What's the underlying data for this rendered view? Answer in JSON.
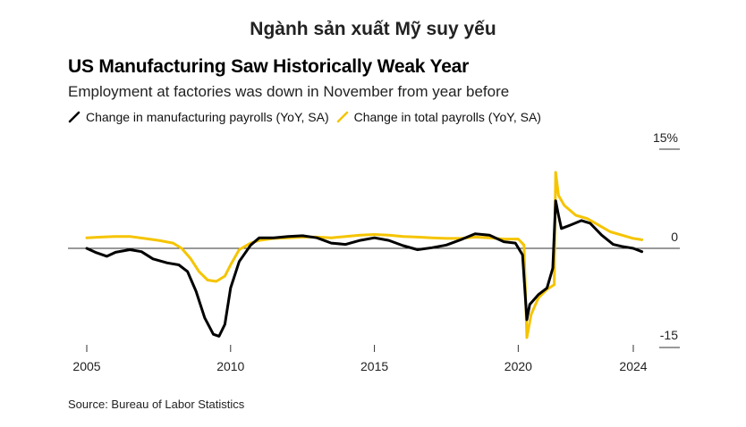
{
  "page": {
    "heading": "Ngành sản xuất Mỹ suy yếu"
  },
  "colors": {
    "manufacturing": "#000000",
    "total": "#f5c400",
    "zero_line": "#333333",
    "axis_text": "#222222"
  },
  "chart_data": {
    "type": "line",
    "title": "US Manufacturing Saw Historically Weak Year",
    "subtitle": "Employment at factories was down in November from year before",
    "source": "Source: Bureau of Labor Statistics",
    "xlim": [
      2005,
      2024
    ],
    "ylim": [
      -15,
      15
    ],
    "x_ticks": [
      2005,
      2010,
      2015,
      2020,
      2024
    ],
    "x_tick_labels": [
      "2005",
      "2010",
      "2015",
      "2020",
      "2024"
    ],
    "y_ticks": [
      15,
      0,
      -15
    ],
    "y_tick_labels": [
      "15%",
      "0",
      "-15"
    ],
    "legend_position": "top",
    "series": [
      {
        "name": "Change in manufacturing payrolls (YoY, SA)",
        "color": "#000000",
        "points": [
          [
            2005.0,
            0.0
          ],
          [
            2005.3,
            -0.6
          ],
          [
            2005.7,
            -1.2
          ],
          [
            2006.0,
            -0.6
          ],
          [
            2006.5,
            -0.2
          ],
          [
            2006.9,
            -0.5
          ],
          [
            2007.3,
            -1.6
          ],
          [
            2007.8,
            -2.2
          ],
          [
            2008.2,
            -2.5
          ],
          [
            2008.5,
            -3.5
          ],
          [
            2008.8,
            -6.5
          ],
          [
            2009.1,
            -10.5
          ],
          [
            2009.4,
            -13.0
          ],
          [
            2009.6,
            -13.3
          ],
          [
            2009.8,
            -11.5
          ],
          [
            2010.0,
            -6.0
          ],
          [
            2010.3,
            -2.0
          ],
          [
            2010.7,
            0.5
          ],
          [
            2011.0,
            1.6
          ],
          [
            2011.5,
            1.6
          ],
          [
            2012.0,
            1.8
          ],
          [
            2012.5,
            1.9
          ],
          [
            2013.0,
            1.6
          ],
          [
            2013.5,
            0.8
          ],
          [
            2014.0,
            0.6
          ],
          [
            2014.5,
            1.2
          ],
          [
            2015.0,
            1.6
          ],
          [
            2015.5,
            1.2
          ],
          [
            2016.0,
            0.4
          ],
          [
            2016.5,
            -0.2
          ],
          [
            2017.0,
            0.1
          ],
          [
            2017.5,
            0.5
          ],
          [
            2018.0,
            1.3
          ],
          [
            2018.5,
            2.2
          ],
          [
            2019.0,
            2.0
          ],
          [
            2019.5,
            1.0
          ],
          [
            2019.9,
            0.8
          ],
          [
            2020.15,
            -1.0
          ],
          [
            2020.3,
            -10.8
          ],
          [
            2020.4,
            -8.5
          ],
          [
            2020.7,
            -7.0
          ],
          [
            2021.0,
            -6.0
          ],
          [
            2021.2,
            -3.0
          ],
          [
            2021.3,
            7.2
          ],
          [
            2021.4,
            5.0
          ],
          [
            2021.5,
            3.0
          ],
          [
            2021.8,
            3.5
          ],
          [
            2022.2,
            4.2
          ],
          [
            2022.5,
            3.8
          ],
          [
            2022.9,
            2.0
          ],
          [
            2023.3,
            0.6
          ],
          [
            2023.6,
            0.3
          ],
          [
            2024.0,
            0.0
          ],
          [
            2024.3,
            -0.5
          ]
        ]
      },
      {
        "name": "Change in total payrolls (YoY, SA)",
        "color": "#f5c400",
        "points": [
          [
            2005.0,
            1.6
          ],
          [
            2005.5,
            1.7
          ],
          [
            2006.0,
            1.8
          ],
          [
            2006.5,
            1.8
          ],
          [
            2007.0,
            1.5
          ],
          [
            2007.5,
            1.2
          ],
          [
            2008.0,
            0.8
          ],
          [
            2008.3,
            0.0
          ],
          [
            2008.6,
            -1.5
          ],
          [
            2008.9,
            -3.5
          ],
          [
            2009.2,
            -4.8
          ],
          [
            2009.5,
            -5.0
          ],
          [
            2009.8,
            -4.2
          ],
          [
            2010.0,
            -2.5
          ],
          [
            2010.3,
            -0.2
          ],
          [
            2010.7,
            0.8
          ],
          [
            2011.0,
            1.2
          ],
          [
            2011.5,
            1.5
          ],
          [
            2012.0,
            1.6
          ],
          [
            2012.5,
            1.7
          ],
          [
            2013.0,
            1.7
          ],
          [
            2013.5,
            1.6
          ],
          [
            2014.0,
            1.8
          ],
          [
            2014.5,
            2.0
          ],
          [
            2015.0,
            2.1
          ],
          [
            2015.5,
            2.0
          ],
          [
            2016.0,
            1.8
          ],
          [
            2016.5,
            1.7
          ],
          [
            2017.0,
            1.6
          ],
          [
            2017.5,
            1.5
          ],
          [
            2018.0,
            1.5
          ],
          [
            2018.5,
            1.7
          ],
          [
            2019.0,
            1.6
          ],
          [
            2019.5,
            1.4
          ],
          [
            2020.0,
            1.4
          ],
          [
            2020.2,
            0.5
          ],
          [
            2020.3,
            -13.5
          ],
          [
            2020.45,
            -10.0
          ],
          [
            2020.7,
            -7.5
          ],
          [
            2021.0,
            -6.2
          ],
          [
            2021.25,
            -5.5
          ],
          [
            2021.3,
            11.5
          ],
          [
            2021.4,
            8.0
          ],
          [
            2021.6,
            6.5
          ],
          [
            2022.0,
            5.0
          ],
          [
            2022.4,
            4.5
          ],
          [
            2022.8,
            3.5
          ],
          [
            2023.2,
            2.5
          ],
          [
            2023.6,
            2.0
          ],
          [
            2024.0,
            1.5
          ],
          [
            2024.3,
            1.3
          ]
        ]
      }
    ]
  }
}
